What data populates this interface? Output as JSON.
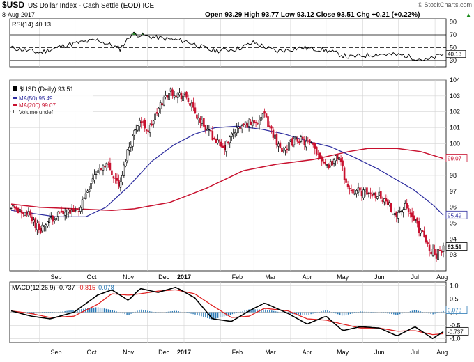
{
  "header": {
    "symbol": "$USD",
    "name": "US Dollar Index - Cash Settle (EOD) ICE",
    "credit": "© StockCharts.com",
    "date": "8-Aug-2017",
    "quote": "Open 93.29  High 93.77  Low 93.12  Close 93.51  Chg +0.21 (+0.22%)",
    "quote_arrow": "▲"
  },
  "colors": {
    "price": "#000000",
    "ma50": "#2b2b9e",
    "ma200": "#c8102e",
    "macd": "#000000",
    "signal": "#e02020",
    "histogram": "#2a79b5",
    "rsi_fill": "#2a8a2a",
    "grid": "#d4d4d4"
  },
  "x_axis": {
    "labels": [
      "Sep",
      "Oct",
      "Nov",
      "Dec",
      "2017",
      "Feb",
      "Mar",
      "Apr",
      "May",
      "Jun",
      "Jul",
      "Aug"
    ]
  },
  "chart_data": [
    {
      "type": "line",
      "panel": "rsi",
      "legend": "RSI(14) 40.13",
      "y_ticks": [
        30,
        50,
        70,
        90
      ],
      "ylim": [
        20,
        95
      ],
      "reference_lines": [
        30,
        50,
        70
      ],
      "last_value": "40.13",
      "grid": true
    },
    {
      "type": "candlestick",
      "panel": "price",
      "legend": [
        "$USD (Daily) 93.51",
        "MA(50) 95.49",
        "MA(200) 99.07",
        "Volume undef"
      ],
      "y_ticks": [
        93,
        94,
        95,
        96,
        97,
        98,
        99,
        100,
        101,
        102,
        103,
        104
      ],
      "ylim": [
        92,
        104
      ],
      "grid": true,
      "series": [
        {
          "name": "$USD (Daily)",
          "last": "93.51",
          "x": [
            "2016-08-08",
            "2016-08-22",
            "2016-09-01",
            "2016-09-15",
            "2016-10-03",
            "2016-10-17",
            "2016-10-27",
            "2016-11-08",
            "2016-11-14",
            "2016-11-24",
            "2016-12-02",
            "2016-12-14",
            "2016-12-20",
            "2017-01-03",
            "2017-01-12",
            "2017-01-26",
            "2017-02-03",
            "2017-02-13",
            "2017-02-22",
            "2017-03-01",
            "2017-03-10",
            "2017-03-24",
            "2017-04-07",
            "2017-04-20",
            "2017-05-02",
            "2017-05-12",
            "2017-05-19",
            "2017-06-01",
            "2017-06-15",
            "2017-06-29",
            "2017-07-07",
            "2017-07-19",
            "2017-07-27",
            "2017-08-02",
            "2017-08-08"
          ],
          "values": [
            95.9,
            95.6,
            94.6,
            95.5,
            95.7,
            98.0,
            98.8,
            97.3,
            99.5,
            101.5,
            100.8,
            102.7,
            103.3,
            102.9,
            101.7,
            100.4,
            99.6,
            100.8,
            101.2,
            101.4,
            101.7,
            99.6,
            100.3,
            99.8,
            98.6,
            99.2,
            97.2,
            96.9,
            96.8,
            95.6,
            96.0,
            94.6,
            93.4,
            93.0,
            93.51
          ]
        },
        {
          "name": "MA(50)",
          "last": "95.49",
          "x": [
            "2016-08-08",
            "2016-09-15",
            "2016-10-10",
            "2016-10-27",
            "2016-11-15",
            "2016-12-05",
            "2016-12-23",
            "2017-01-10",
            "2017-01-27",
            "2017-02-15",
            "2017-03-08",
            "2017-03-27",
            "2017-04-18",
            "2017-05-05",
            "2017-05-26",
            "2017-06-14",
            "2017-06-30",
            "2017-07-14",
            "2017-07-31",
            "2017-08-08"
          ],
          "values": [
            95.8,
            95.4,
            95.4,
            96.0,
            97.3,
            98.9,
            99.9,
            100.6,
            101.0,
            101.1,
            100.9,
            100.6,
            100.1,
            99.8,
            99.1,
            98.4,
            97.7,
            97.1,
            96.1,
            95.49
          ]
        },
        {
          "name": "MA(200)",
          "last": "99.07",
          "x": [
            "2016-08-08",
            "2016-09-01",
            "2016-10-01",
            "2016-11-01",
            "2016-11-20",
            "2016-12-20",
            "2017-01-20",
            "2017-02-20",
            "2017-03-20",
            "2017-04-20",
            "2017-05-20",
            "2017-06-05",
            "2017-06-30",
            "2017-07-20",
            "2017-08-08"
          ],
          "values": [
            96.2,
            96.0,
            95.9,
            95.8,
            95.9,
            96.3,
            97.2,
            98.3,
            98.7,
            99.0,
            99.5,
            99.7,
            99.7,
            99.5,
            99.07
          ]
        }
      ]
    },
    {
      "type": "line",
      "panel": "macd",
      "legend": [
        "MACD(12,26,9) -0.737",
        "-0.815",
        "0.078"
      ],
      "y_ticks": [
        -1.0,
        -0.5,
        0.0,
        0.5,
        1.0
      ],
      "ylim": [
        -1.15,
        1.15
      ],
      "grid": true,
      "series": [
        {
          "name": "MACD(12,26,9)",
          "last": "-0.737"
        },
        {
          "name": "Signal",
          "last": "-0.815"
        },
        {
          "name": "Histogram",
          "last": "0.078"
        }
      ]
    }
  ]
}
